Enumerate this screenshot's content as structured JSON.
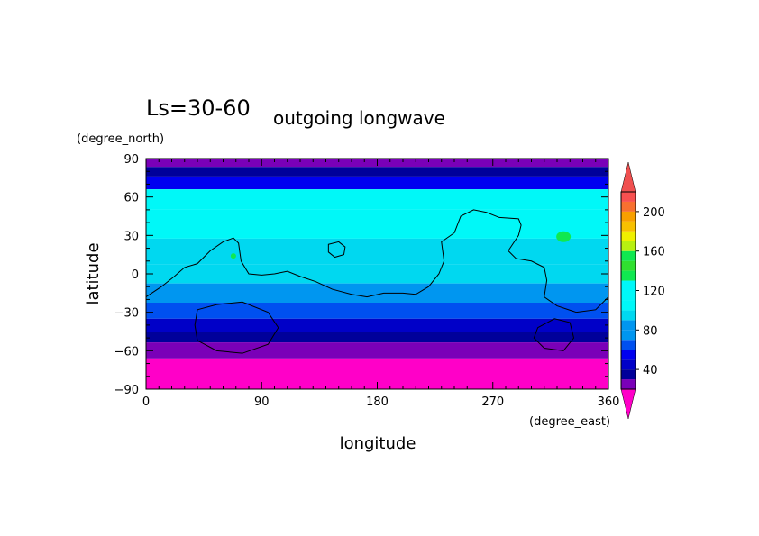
{
  "chart_data": {
    "type": "heatmap",
    "title": "Ls=30-60",
    "subtitle": "outgoing longwave",
    "xlabel": "longitude",
    "ylabel": "latitude",
    "x_units": "(degree_east)",
    "y_units": "(degree_north)",
    "xlim": [
      0,
      360
    ],
    "ylim": [
      -90,
      90
    ],
    "x_ticks": [
      0,
      90,
      180,
      270,
      360
    ],
    "y_ticks": [
      90,
      60,
      30,
      0,
      -30,
      -60,
      -90
    ],
    "x_tick_labels": [
      "0",
      "90",
      "180",
      "270",
      "360"
    ],
    "y_tick_labels": [
      "90",
      "60",
      "30",
      "0",
      "−30",
      "−60",
      "−90"
    ],
    "grid": false,
    "colorbar": {
      "levels": [
        20,
        30,
        40,
        50,
        60,
        70,
        80,
        90,
        100,
        110,
        120,
        130,
        140,
        150,
        160,
        170,
        180,
        190,
        200,
        210,
        220
      ],
      "tick_values": [
        40,
        80,
        120,
        160,
        200
      ],
      "tick_labels": [
        "40",
        "80",
        "120",
        "160",
        "200"
      ],
      "colors": [
        "#7a00b8",
        "#00009a",
        "#0000c8",
        "#0000f0",
        "#0050f0",
        "#0096f0",
        "#0096f0",
        "#00d8f0",
        "#00f8f8",
        "#00f8f8",
        "#00f8f8",
        "#10e850",
        "#30e030",
        "#10e850",
        "#b8f010",
        "#f0f000",
        "#f8c000",
        "#f8a000",
        "#f87030",
        "#f85050"
      ],
      "under_color": "#ff00c8",
      "over_color": "#f05050"
    },
    "latitude_band_values": [
      {
        "lat": 87,
        "value": 25
      },
      {
        "lat": 80,
        "value": 38
      },
      {
        "lat": 72,
        "value": 55
      },
      {
        "lat": 60,
        "value": 110
      },
      {
        "lat": 40,
        "value": 112
      },
      {
        "lat": 15,
        "value": 95
      },
      {
        "lat": 0,
        "value": 95
      },
      {
        "lat": -15,
        "value": 85
      },
      {
        "lat": -30,
        "value": 60
      },
      {
        "lat": -40,
        "value": 45
      },
      {
        "lat": -50,
        "value": 30
      },
      {
        "lat": -57,
        "value": 22
      },
      {
        "lat": -75,
        "value": 10
      }
    ],
    "features": [
      {
        "kind": "local-max",
        "lon": 325,
        "lat": 29,
        "value": 150
      },
      {
        "kind": "local-max",
        "lon": 68,
        "lat": 14,
        "value": 135
      }
    ],
    "overlay": "topography contour"
  }
}
